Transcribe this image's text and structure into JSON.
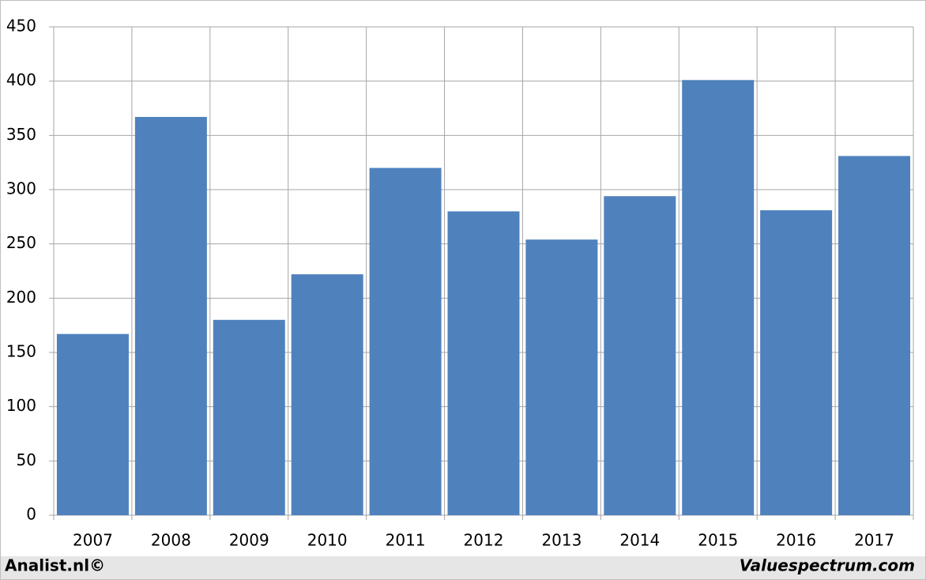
{
  "chart_data": {
    "type": "bar",
    "categories": [
      "2007",
      "2008",
      "2009",
      "2010",
      "2011",
      "2012",
      "2013",
      "2014",
      "2015",
      "2016",
      "2017"
    ],
    "values": [
      167,
      367,
      180,
      222,
      320,
      280,
      254,
      294,
      401,
      281,
      331
    ],
    "color": "#4f81bd",
    "ylim": [
      0,
      450
    ],
    "yticks": [
      0,
      50,
      100,
      150,
      200,
      250,
      300,
      350,
      400,
      450
    ],
    "grid": true
  },
  "footer": {
    "left": "Analist.nl©",
    "right": "Valuespectrum.com"
  }
}
